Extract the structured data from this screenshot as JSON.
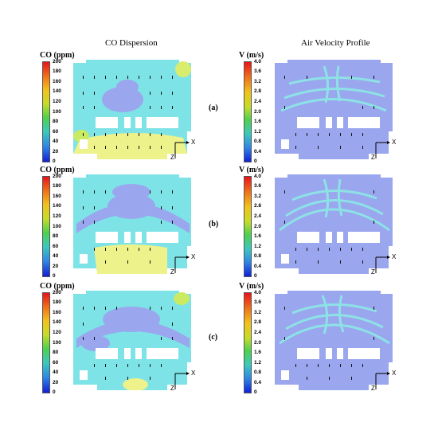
{
  "titles": {
    "left": "CO Dispersion",
    "right": "Air Velocity Profile"
  },
  "co_legend": {
    "title": "CO (ppm)",
    "ticks": [
      "200",
      "180",
      "160",
      "140",
      "120",
      "100",
      "80",
      "60",
      "40",
      "20",
      "0"
    ]
  },
  "v_legend": {
    "title": "V (m/s)",
    "ticks": [
      "4.0",
      "3.6",
      "3.2",
      "2.8",
      "2.4",
      "2.0",
      "1.6",
      "1.2",
      "0.8",
      "0.4",
      "0"
    ]
  },
  "panels": [
    "(a)",
    "(b)",
    "(c)"
  ],
  "axes": {
    "x": "X",
    "z": "Z"
  },
  "colors": {
    "co_background": "#7de3e7",
    "co_cool": "#9aa7ee",
    "co_high": "#eef28b",
    "v_background": "#9aa6ee",
    "v_stream": "#8de2e6"
  }
}
